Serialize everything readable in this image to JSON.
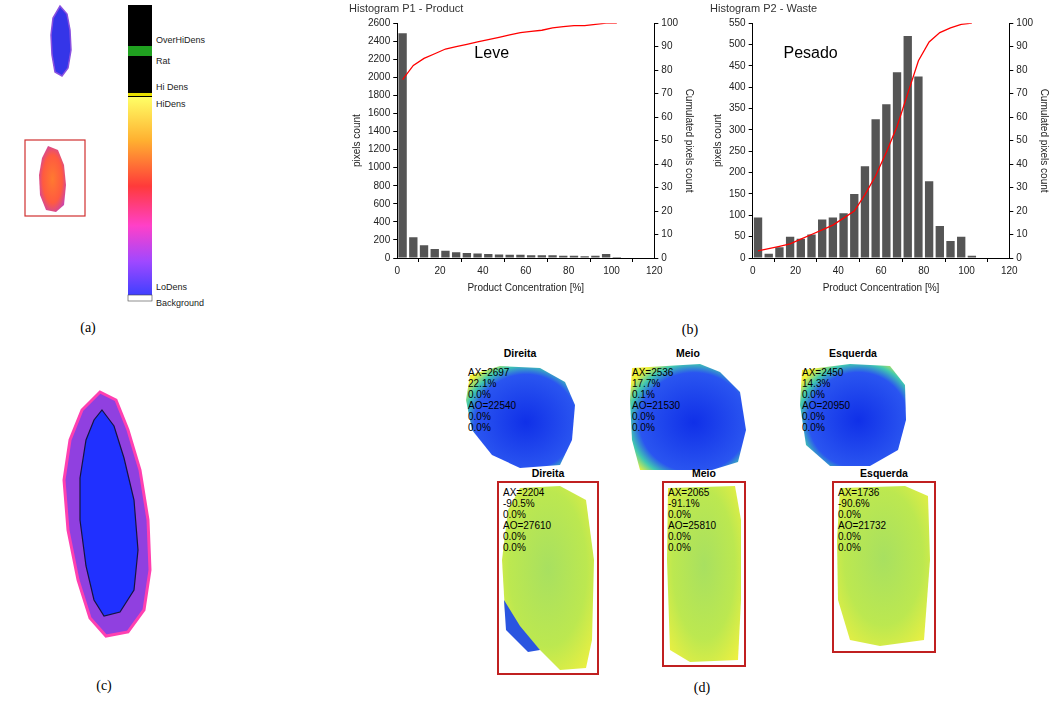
{
  "chart_data": [
    {
      "type": "histogram",
      "title": "Histogram P1 - Product",
      "annotation": "Leve",
      "x_label": "Product Concentration [%]",
      "y_label": "pixels count",
      "y2_label": "Cumulated pixels count",
      "bins": [
        0,
        5,
        10,
        15,
        20,
        25,
        30,
        35,
        40,
        45,
        50,
        55,
        60,
        65,
        70,
        75,
        80,
        85,
        90,
        95,
        100,
        105
      ],
      "counts": [
        2490,
        230,
        140,
        100,
        80,
        65,
        55,
        50,
        45,
        40,
        35,
        35,
        30,
        30,
        30,
        25,
        25,
        20,
        25,
        45,
        10
      ],
      "color": "#555555",
      "cumulative": {
        "x": [
          2.5,
          7.5,
          12.5,
          17.5,
          22.5,
          27.5,
          32.5,
          37.5,
          42.5,
          47.5,
          52.5,
          57.5,
          62.5,
          67.5,
          72.5,
          77.5,
          82.5,
          87.5,
          92.5,
          97.5,
          102.5
        ],
        "values": [
          76,
          82,
          85,
          87,
          89,
          90,
          91,
          92,
          93,
          94,
          95,
          96,
          96.5,
          97,
          98,
          98.5,
          99,
          99,
          99.5,
          100,
          100
        ],
        "color": "#ff0000",
        "axis": "y2"
      },
      "xlim": [
        0,
        120
      ],
      "xticks": [
        0,
        20,
        40,
        60,
        80,
        100,
        120
      ],
      "ylim": [
        0,
        2600
      ],
      "yticks": [
        0,
        200,
        400,
        600,
        800,
        1000,
        1200,
        1400,
        1600,
        1800,
        2000,
        2200,
        2400,
        2600
      ],
      "y2lim": [
        0,
        100
      ],
      "y2ticks": [
        0,
        10,
        20,
        30,
        40,
        50,
        60,
        70,
        80,
        90,
        100
      ],
      "grid": false
    },
    {
      "type": "histogram",
      "title": "Histogram P2 - Waste",
      "annotation": "Pesado",
      "x_label": "Product Concentration [%]",
      "y_label": "pixels count",
      "y2_label": "Cumulated pixels count",
      "bins": [
        0,
        5,
        10,
        15,
        20,
        25,
        30,
        35,
        40,
        45,
        50,
        55,
        60,
        65,
        70,
        75,
        80,
        85,
        90,
        95,
        100,
        105
      ],
      "counts": [
        95,
        10,
        25,
        50,
        45,
        55,
        90,
        95,
        105,
        150,
        215,
        325,
        360,
        435,
        520,
        425,
        180,
        75,
        40,
        50,
        5
      ],
      "color": "#555555",
      "cumulative": {
        "x": [
          2.5,
          7.5,
          12.5,
          17.5,
          22.5,
          27.5,
          32.5,
          37.5,
          42.5,
          47.5,
          52.5,
          57.5,
          62.5,
          67.5,
          72.5,
          77.5,
          82.5,
          87.5,
          92.5,
          97.5,
          102.5
        ],
        "values": [
          3,
          4,
          5,
          6,
          8,
          10,
          12,
          14,
          17,
          20,
          27,
          35,
          45,
          56,
          70,
          84,
          92,
          96,
          98,
          99.5,
          100
        ],
        "color": "#ff0000",
        "axis": "y2"
      },
      "xlim": [
        0,
        120
      ],
      "xticks": [
        0,
        20,
        40,
        60,
        80,
        100,
        120
      ],
      "ylim": [
        0,
        550
      ],
      "yticks": [
        0,
        50,
        100,
        150,
        200,
        250,
        300,
        350,
        400,
        450,
        500,
        550
      ],
      "y2lim": [
        0,
        100
      ],
      "y2ticks": [
        0,
        10,
        20,
        30,
        40,
        50,
        60,
        70,
        80,
        90,
        100
      ],
      "grid": false
    }
  ],
  "figure": {
    "panel_labels": [
      "(a)",
      "(b)",
      "(c)",
      "(d)"
    ],
    "colorbar": {
      "labels": [
        "OverHiDens",
        "Rat",
        "Hi Dens",
        "HiDens",
        "LoDens",
        "Background"
      ]
    },
    "heatmaps": {
      "top": [
        {
          "title": "Direita",
          "lines": [
            "AX=2697",
            "22.1%",
            "0.0%",
            "AO=22540",
            "0.0%",
            "0.0%"
          ]
        },
        {
          "title": "Meio",
          "lines": [
            "AX=2536",
            "17.7%",
            "0.1%",
            "AO=21530",
            "0.0%",
            "0.0%"
          ]
        },
        {
          "title": "Esquerda",
          "lines": [
            "AX=2450",
            "14.3%",
            "0.0%",
            "AO=20950",
            "0.0%",
            "0.0%"
          ]
        }
      ],
      "bottom": [
        {
          "title": "Direita",
          "lines": [
            "AX=2204",
            "-90.5%",
            "0.0%",
            "AO=27610",
            "0.0%",
            "0.0%"
          ]
        },
        {
          "title": "Meio",
          "lines": [
            "AX=2065",
            "-91.1%",
            "0.0%",
            "AO=25810",
            "0.0%",
            "0.0%"
          ]
        },
        {
          "title": "Esquerda",
          "lines": [
            "AX=1736",
            "-90.6%",
            "0.0%",
            "AO=21732",
            "0.0%",
            "0.0%"
          ]
        }
      ]
    }
  }
}
